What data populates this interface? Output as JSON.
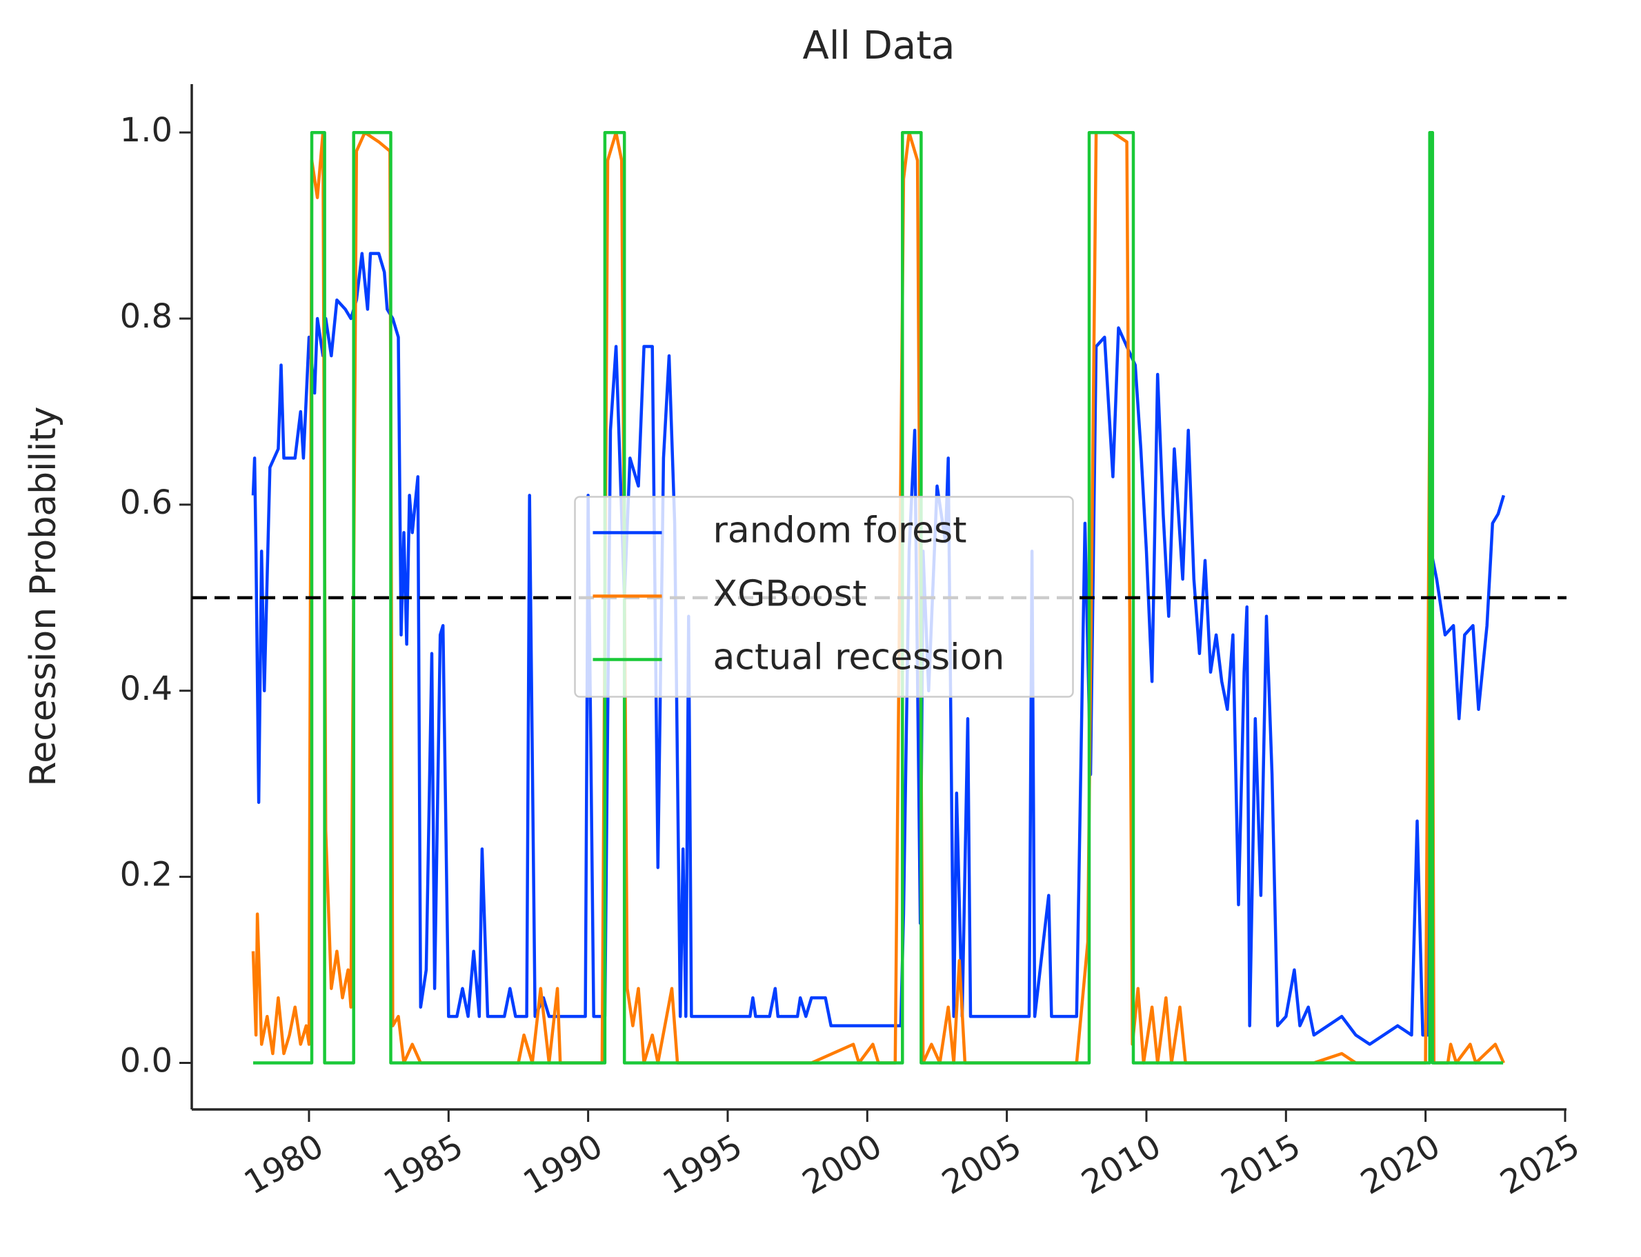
{
  "chart_data": {
    "type": "line",
    "title": "All Data",
    "y_label": "Recession Probability",
    "xlim": [
      1975.8,
      2025.05
    ],
    "ylim": [
      -0.05,
      1.052
    ],
    "xticks": [
      1980,
      1985,
      1990,
      1995,
      2000,
      2005,
      2010,
      2015,
      2020,
      2025
    ],
    "yticks": [
      {
        "value": 0,
        "label": "0.0"
      },
      0.2,
      0.4,
      0.6,
      0.8,
      {
        "value": 1,
        "label": "1.0"
      }
    ],
    "hline": {
      "value": 0.5,
      "color": "#000000"
    },
    "legend": "center",
    "series": [
      {
        "name": "random forest",
        "color": "#023eff",
        "x": [
          1978.0,
          1978.05,
          1978.1,
          1978.2,
          1978.3,
          1978.4,
          1978.6,
          1978.9,
          1979.0,
          1979.1,
          1979.5,
          1979.7,
          1979.8,
          1980.0,
          1980.2,
          1980.3,
          1980.5,
          1980.6,
          1980.8,
          1981.0,
          1981.3,
          1981.5,
          1981.7,
          1981.9,
          1982.1,
          1982.2,
          1982.5,
          1982.7,
          1982.8,
          1983.0,
          1983.2,
          1983.3,
          1983.4,
          1983.5,
          1983.6,
          1983.7,
          1983.9,
          1984.0,
          1984.2,
          1984.4,
          1984.5,
          1984.7,
          1984.8,
          1985.0,
          1985.3,
          1985.5,
          1985.7,
          1985.9,
          1986.1,
          1986.2,
          1986.4,
          1987.0,
          1987.2,
          1987.4,
          1987.8,
          1987.9,
          1988.1,
          1988.4,
          1988.6,
          1989.0,
          1989.5,
          1989.9,
          1990.0,
          1990.2,
          1990.6,
          1990.8,
          1991.0,
          1991.3,
          1991.5,
          1991.8,
          1992.0,
          1992.3,
          1992.5,
          1992.7,
          1992.9,
          1993.1,
          1993.3,
          1993.4,
          1993.5,
          1993.6,
          1993.7,
          1994.0,
          1995.0,
          1995.8,
          1995.9,
          1996.0,
          1996.5,
          1996.7,
          1996.8,
          1997.5,
          1997.6,
          1997.8,
          1998.0,
          1998.5,
          1998.7,
          1999.0,
          2000.0,
          2000.5,
          2001.0,
          2001.2,
          2001.3,
          2001.5,
          2001.7,
          2001.9,
          2002.0,
          2002.2,
          2002.5,
          2002.8,
          2002.9,
          2003.1,
          2003.2,
          2003.4,
          2003.6,
          2003.7,
          2004.0,
          2004.5,
          2005.0,
          2005.8,
          2005.9,
          2006.0,
          2006.5,
          2006.6,
          2007.0,
          2007.5,
          2007.8,
          2008.0,
          2008.2,
          2008.5,
          2008.8,
          2009.0,
          2009.3,
          2009.6,
          2009.8,
          2010.0,
          2010.2,
          2010.4,
          2010.6,
          2010.8,
          2011.0,
          2011.3,
          2011.5,
          2011.7,
          2011.9,
          2012.1,
          2012.3,
          2012.5,
          2012.7,
          2012.9,
          2013.1,
          2013.3,
          2013.5,
          2013.6,
          2013.7,
          2013.9,
          2014.1,
          2014.3,
          2014.5,
          2014.7,
          2015.0,
          2015.3,
          2015.5,
          2015.8,
          2016.0,
          2016.5,
          2017.0,
          2017.5,
          2018.0,
          2018.5,
          2019.0,
          2019.5,
          2019.7,
          2019.9,
          2020.1,
          2020.2,
          2020.4,
          2020.7,
          2021.0,
          2021.2,
          2021.4,
          2021.7,
          2021.9,
          2022.2,
          2022.4,
          2022.6,
          2022.8
        ],
        "values": [
          0.61,
          0.65,
          0.55,
          0.28,
          0.55,
          0.4,
          0.64,
          0.66,
          0.75,
          0.65,
          0.65,
          0.7,
          0.65,
          0.78,
          0.72,
          0.8,
          0.76,
          0.8,
          0.76,
          0.82,
          0.81,
          0.8,
          0.82,
          0.87,
          0.81,
          0.87,
          0.87,
          0.85,
          0.81,
          0.8,
          0.78,
          0.46,
          0.57,
          0.45,
          0.61,
          0.57,
          0.63,
          0.06,
          0.1,
          0.44,
          0.08,
          0.46,
          0.47,
          0.05,
          0.05,
          0.08,
          0.05,
          0.12,
          0.05,
          0.23,
          0.05,
          0.05,
          0.08,
          0.05,
          0.05,
          0.61,
          0.05,
          0.07,
          0.05,
          0.05,
          0.05,
          0.05,
          0.61,
          0.05,
          0.05,
          0.68,
          0.77,
          0.5,
          0.65,
          0.62,
          0.77,
          0.77,
          0.21,
          0.65,
          0.76,
          0.58,
          0.05,
          0.23,
          0.05,
          0.48,
          0.05,
          0.05,
          0.05,
          0.05,
          0.07,
          0.05,
          0.05,
          0.08,
          0.05,
          0.05,
          0.07,
          0.05,
          0.07,
          0.07,
          0.04,
          0.04,
          0.04,
          0.04,
          0.04,
          0.04,
          0.16,
          0.55,
          0.68,
          0.15,
          0.55,
          0.4,
          0.62,
          0.56,
          0.65,
          0.05,
          0.29,
          0.05,
          0.37,
          0.05,
          0.05,
          0.05,
          0.05,
          0.05,
          0.55,
          0.05,
          0.18,
          0.05,
          0.05,
          0.05,
          0.58,
          0.31,
          0.77,
          0.78,
          0.63,
          0.79,
          0.77,
          0.75,
          0.66,
          0.55,
          0.41,
          0.74,
          0.59,
          0.48,
          0.66,
          0.52,
          0.68,
          0.52,
          0.44,
          0.54,
          0.42,
          0.46,
          0.41,
          0.38,
          0.46,
          0.17,
          0.42,
          0.49,
          0.04,
          0.37,
          0.18,
          0.48,
          0.31,
          0.04,
          0.05,
          0.1,
          0.04,
          0.06,
          0.03,
          0.04,
          0.05,
          0.03,
          0.02,
          0.03,
          0.04,
          0.03,
          0.26,
          0.03,
          0.03,
          0.55,
          0.52,
          0.46,
          0.47,
          0.37,
          0.46,
          0.47,
          0.38,
          0.47,
          0.58,
          0.59,
          0.61
        ]
      },
      {
        "name": "XGBoost",
        "color": "#ff7c00",
        "x": [
          1978.0,
          1978.1,
          1978.15,
          1978.3,
          1978.5,
          1978.7,
          1978.9,
          1979.1,
          1979.3,
          1979.5,
          1979.7,
          1979.9,
          1980.0,
          1980.1,
          1980.3,
          1980.5,
          1980.6,
          1980.8,
          1981.0,
          1981.2,
          1981.4,
          1981.5,
          1981.7,
          1982.0,
          1982.5,
          1982.9,
          1983.0,
          1983.2,
          1983.4,
          1983.7,
          1984.0,
          1985.0,
          1986.0,
          1987.0,
          1987.5,
          1987.7,
          1988.0,
          1988.3,
          1988.6,
          1988.9,
          1989.0,
          1990.0,
          1990.5,
          1990.7,
          1991.0,
          1991.2,
          1991.4,
          1991.6,
          1991.8,
          1992.0,
          1992.3,
          1992.5,
          1993.0,
          1993.2,
          1994.0,
          1996.0,
          1998.0,
          1999.5,
          1999.7,
          2000.2,
          2000.4,
          2001.0,
          2001.3,
          2001.5,
          2001.8,
          2002.0,
          2002.3,
          2002.6,
          2002.9,
          2003.1,
          2003.3,
          2003.5,
          2004.0,
          2006.0,
          2007.5,
          2007.9,
          2008.2,
          2008.8,
          2009.3,
          2009.5,
          2009.7,
          2009.9,
          2010.2,
          2010.4,
          2010.7,
          2010.9,
          2011.2,
          2011.4,
          2012.0,
          2014.0,
          2016.0,
          2017.0,
          2017.5,
          2019.0,
          2020.0,
          2020.2,
          2020.3,
          2020.8,
          2020.9,
          2021.1,
          2021.6,
          2021.8,
          2022.5,
          2022.8
        ],
        "values": [
          0.12,
          0.03,
          0.16,
          0.02,
          0.05,
          0.01,
          0.07,
          0.01,
          0.03,
          0.06,
          0.02,
          0.04,
          0.02,
          0.97,
          0.93,
          1.0,
          0.25,
          0.08,
          0.12,
          0.07,
          0.1,
          0.06,
          0.98,
          1.0,
          0.99,
          0.98,
          0.04,
          0.05,
          0.0,
          0.02,
          0.0,
          0.0,
          0.0,
          0.0,
          0.0,
          0.03,
          0.0,
          0.08,
          0.0,
          0.08,
          0.0,
          0.0,
          0.0,
          0.97,
          1.0,
          0.97,
          0.08,
          0.04,
          0.08,
          0.0,
          0.03,
          0.0,
          0.08,
          0.0,
          0.0,
          0.0,
          0.0,
          0.02,
          0.0,
          0.02,
          0.0,
          0.0,
          0.95,
          1.0,
          0.97,
          0.0,
          0.02,
          0.0,
          0.06,
          0.0,
          0.11,
          0.0,
          0.0,
          0.0,
          0.0,
          0.13,
          1.0,
          1.0,
          0.99,
          0.02,
          0.08,
          0.0,
          0.06,
          0.0,
          0.07,
          0.0,
          0.06,
          0.0,
          0.0,
          0.0,
          0.0,
          0.01,
          0.0,
          0.0,
          0.0,
          0.95,
          0.0,
          0.0,
          0.02,
          0.0,
          0.02,
          0.0,
          0.02,
          0.0
        ]
      },
      {
        "name": "actual recession",
        "color": "#1ac938",
        "x": [
          1978.0,
          1980.1,
          1980.1,
          1980.56,
          1980.56,
          1981.6,
          1981.6,
          1982.93,
          1982.93,
          1990.6,
          1990.6,
          1991.3,
          1991.3,
          2001.26,
          2001.26,
          2001.93,
          2001.93,
          2007.95,
          2007.95,
          2009.53,
          2009.53,
          2020.15,
          2020.15,
          2020.25,
          2020.25,
          2022.78
        ],
        "values": [
          0,
          0,
          1,
          1,
          0,
          0,
          1,
          1,
          0,
          0,
          1,
          1,
          0,
          0,
          1,
          1,
          0,
          0,
          1,
          1,
          0,
          0,
          1,
          1,
          0,
          0
        ]
      }
    ]
  }
}
